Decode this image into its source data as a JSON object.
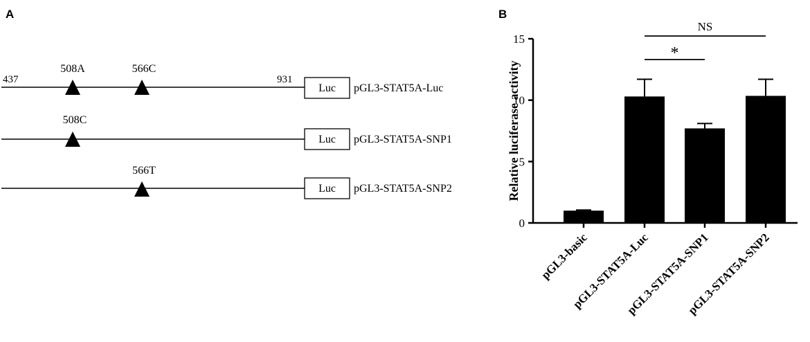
{
  "panel_a": {
    "label": "A",
    "constructs": [
      {
        "name": "pGL3-STAT5A-Luc",
        "start_label": "437",
        "end_label": "931",
        "box_label": "Luc",
        "markers": [
          {
            "label": "508A",
            "position": 508
          },
          {
            "label": "566C",
            "position": 566
          }
        ]
      },
      {
        "name": "pGL3-STAT5A-SNP1",
        "box_label": "Luc",
        "markers": [
          {
            "label": "508C",
            "position": 508
          }
        ]
      },
      {
        "name": "pGL3-STAT5A-SNP2",
        "box_label": "Luc",
        "markers": [
          {
            "label": "566T",
            "position": 566
          }
        ]
      }
    ]
  },
  "panel_b": {
    "label": "B"
  },
  "chart_data": {
    "type": "bar",
    "categories": [
      "pGL3-basic",
      "pGL3-STAT5A-Luc",
      "pGL3-STAT5A-SNP1",
      "pGL3-STAT5A-SNP2"
    ],
    "values": [
      1.0,
      10.3,
      7.7,
      10.35
    ],
    "errors": [
      0.05,
      1.4,
      0.4,
      1.35
    ],
    "ylabel": "Relative luciferase activity",
    "xlabel": "",
    "ylim": [
      0,
      15
    ],
    "yticks": [
      0,
      5,
      10,
      15
    ],
    "bar_color": "#000000",
    "annotations": [
      {
        "from": "pGL3-STAT5A-Luc",
        "to": "pGL3-STAT5A-SNP1",
        "label": "*"
      },
      {
        "from": "pGL3-STAT5A-Luc",
        "to": "pGL3-STAT5A-SNP2",
        "label": "NS"
      }
    ]
  }
}
